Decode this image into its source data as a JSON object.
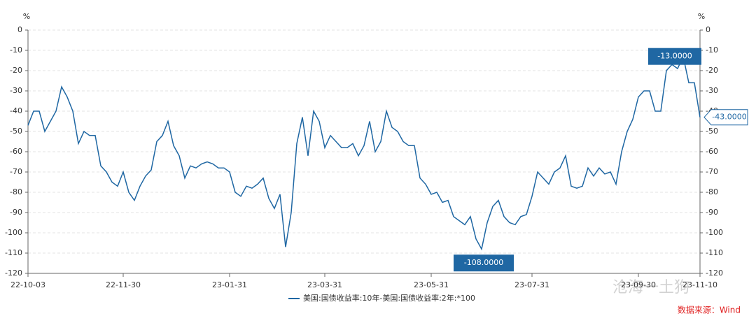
{
  "chart_data": {
    "type": "line",
    "y_unit": "%",
    "y2_unit": "%",
    "categories": [
      "22-10-03",
      null,
      null,
      null,
      null,
      null,
      null,
      null,
      null,
      null,
      null,
      null,
      null,
      null,
      null,
      null,
      null,
      "22-11-30",
      null,
      null,
      null,
      null,
      null,
      null,
      null,
      null,
      null,
      null,
      null,
      null,
      null,
      null,
      null,
      null,
      null,
      null,
      "23-01-31",
      null,
      null,
      null,
      null,
      null,
      null,
      null,
      null,
      null,
      null,
      null,
      null,
      null,
      null,
      null,
      null,
      "23-03-31",
      null,
      null,
      null,
      null,
      null,
      null,
      null,
      null,
      null,
      null,
      null,
      null,
      null,
      null,
      null,
      null,
      null,
      null,
      "23-05-31",
      null,
      null,
      null,
      null,
      null,
      null,
      null,
      null,
      null,
      null,
      null,
      null,
      null,
      null,
      null,
      null,
      null,
      "23-07-31",
      null,
      null,
      null,
      null,
      null,
      null,
      null,
      null,
      null,
      null,
      null,
      null,
      null,
      null,
      null,
      null,
      null,
      null,
      "23-09-30",
      null,
      null,
      null,
      null,
      null,
      null,
      null,
      null,
      null,
      null,
      "23-11-10"
    ],
    "series": [
      {
        "name": "美国:国债收益率:10年-美国:国债收益率:2年:*100",
        "color": "#1f67a3",
        "values": [
          -47,
          -40,
          -40,
          -50,
          -45,
          -40,
          -28,
          -33,
          -40,
          -56,
          -50,
          -52,
          -52,
          -67,
          -70,
          -75,
          -77,
          -70,
          -80,
          -84,
          -77,
          -72,
          -69,
          -55,
          -52,
          -45,
          -57,
          -62,
          -73,
          -67,
          -68,
          -66,
          -65,
          -66,
          -68,
          -68,
          -70,
          -80,
          -82,
          -77,
          -78,
          -76,
          -73,
          -83,
          -88,
          -81,
          -107,
          -90,
          -56,
          -43,
          -62,
          -40,
          -45,
          -58,
          -52,
          -55,
          -58,
          -58,
          -56,
          -62,
          -57,
          -45,
          -60,
          -55,
          -40,
          -48,
          -50,
          -55,
          -57,
          -57,
          -73,
          -76,
          -81,
          -80,
          -85,
          -84,
          -92,
          -94,
          -96,
          -92,
          -103,
          -108,
          -95,
          -87,
          -84,
          -92,
          -95,
          -96,
          -92,
          -91,
          -82,
          -70,
          -73,
          -76,
          -70,
          -68,
          -62,
          -77,
          -78,
          -77,
          -68,
          -72,
          -68,
          -71,
          -70,
          -76,
          -60,
          -50,
          -44,
          -33,
          -30,
          -30,
          -40,
          -40,
          -20,
          -17,
          -19,
          -13,
          -26,
          -26,
          -43
        ],
        "value_labels": [
          null,
          null,
          null,
          null,
          null,
          null,
          null,
          null,
          null,
          null,
          null,
          null,
          null,
          null,
          null,
          null,
          null,
          null,
          null,
          null,
          null,
          null,
          null,
          null,
          null,
          null,
          null,
          null,
          null,
          null,
          null,
          null,
          null,
          null,
          null,
          null,
          null,
          null,
          null,
          null,
          null,
          null,
          null,
          null,
          null,
          null,
          null,
          null,
          null,
          null,
          null,
          null,
          null,
          null,
          null,
          null,
          null,
          null,
          null,
          null,
          null,
          null,
          null,
          null,
          null,
          null,
          null,
          null,
          null,
          null,
          null,
          null,
          null,
          null,
          null,
          null,
          null,
          null,
          null,
          null,
          null,
          "-108.0000",
          null,
          null,
          null,
          null,
          null,
          null,
          null,
          null,
          null,
          null,
          null,
          null,
          null,
          null,
          null,
          null,
          null,
          null,
          null,
          null,
          null,
          null,
          null,
          null,
          null,
          null,
          null,
          null,
          null,
          null,
          null,
          null,
          null,
          null,
          null,
          "-13.0000",
          null,
          null,
          "-43.0000"
        ]
      }
    ],
    "ylim": [
      -120,
      0
    ],
    "yticks": [
      0,
      -10,
      -20,
      -30,
      -40,
      -50,
      -60,
      -70,
      -80,
      -90,
      -100,
      -110,
      -120
    ],
    "y2lim": [
      -120,
      0
    ],
    "y2ticks": [
      0,
      -10,
      -20,
      -30,
      -40,
      -50,
      -60,
      -70,
      -80,
      -90,
      -100,
      -110,
      -120
    ],
    "grid": true,
    "legend": "bottom",
    "source": "数据来源：Wind",
    "watermark": "沧海一土狗"
  }
}
